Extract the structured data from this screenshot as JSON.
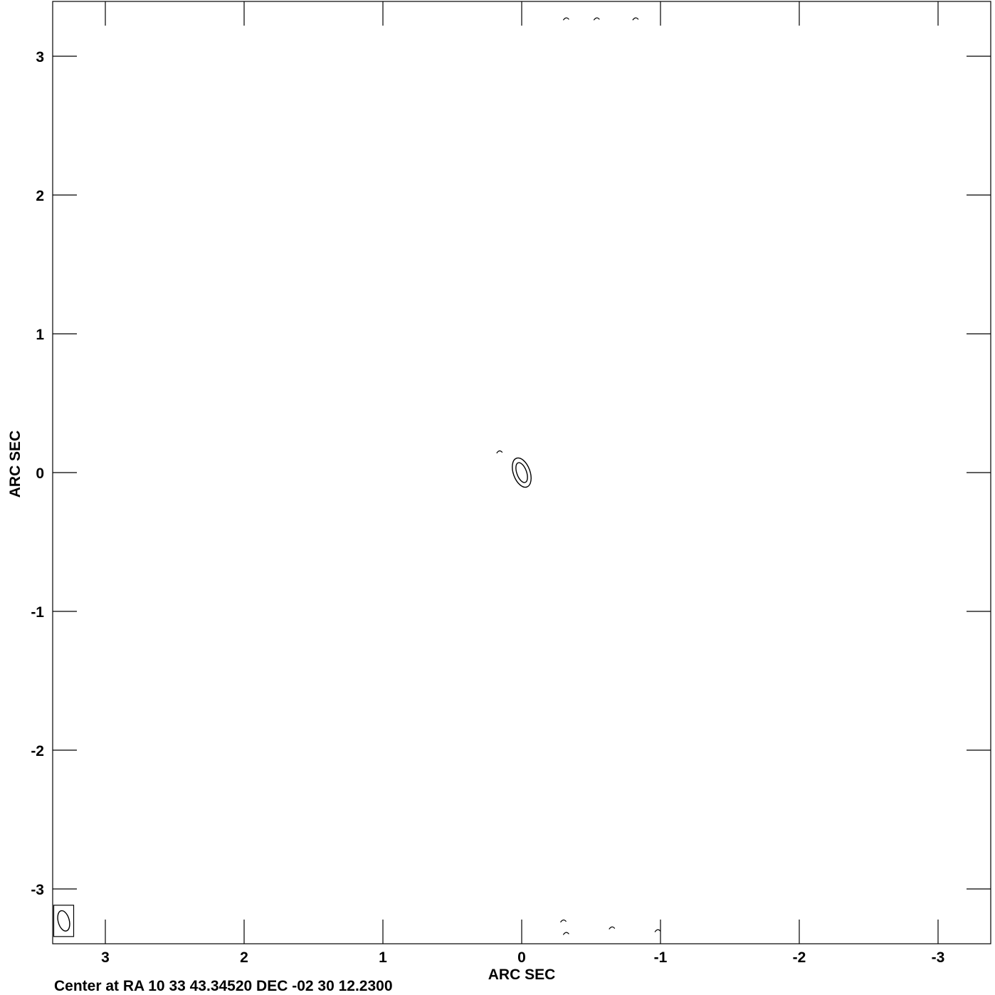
{
  "chart_data": {
    "type": "contour",
    "xlabel": "ARC SEC",
    "ylabel": "ARC SEC",
    "xlim": [
      3.4,
      -3.4
    ],
    "ylim": [
      -3.4,
      3.3
    ],
    "x_ticks": [
      3,
      2,
      1,
      0,
      -1,
      -2,
      -3
    ],
    "y_ticks": [
      3,
      2,
      1,
      0,
      -1,
      -2,
      -3
    ],
    "x_tick_labels": [
      "3",
      "2",
      "1",
      "0",
      "-1",
      "-2",
      "-3"
    ],
    "y_tick_labels": [
      "3",
      "2",
      "1",
      "0",
      "-1",
      "-2",
      "-3"
    ],
    "grid": false,
    "center_text": "Center at RA 10 33 43.34520 DEC -02 30 12.2300",
    "source_contours": [
      {
        "x": 0.0,
        "y": 0.0,
        "rx": 0.06,
        "ry": 0.11,
        "angle_deg": -20
      },
      {
        "x": 0.0,
        "y": 0.0,
        "rx": 0.035,
        "ry": 0.075,
        "angle_deg": -20
      }
    ],
    "noise_contours": [
      {
        "x": 0.16,
        "y": 0.15
      },
      {
        "x": -0.32,
        "y": 3.27
      },
      {
        "x": -0.54,
        "y": 3.27
      },
      {
        "x": -0.82,
        "y": 3.27
      },
      {
        "x": -0.3,
        "y": -3.23
      },
      {
        "x": -0.32,
        "y": -3.32
      },
      {
        "x": -0.65,
        "y": -3.28
      },
      {
        "x": -0.98,
        "y": -3.3
      }
    ],
    "beam": {
      "x": 3.3,
      "y": -3.23,
      "rx": 0.04,
      "ry": 0.075,
      "angle_deg": -15
    }
  }
}
